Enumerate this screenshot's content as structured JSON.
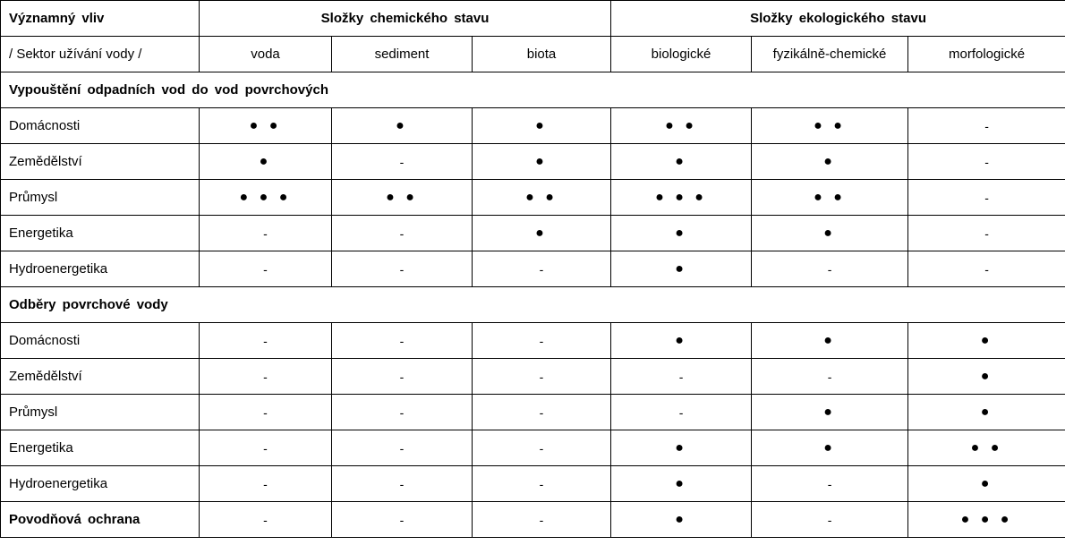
{
  "header": {
    "col0_title": "Významný vliv",
    "col0_sub": "/ Sektor užívání vody /",
    "chem_group": "Složky chemického stavu",
    "eco_group": "Složky ekologického stavu",
    "columns": [
      "voda",
      "sediment",
      "biota",
      "biologické",
      "fyzikálně-chemické",
      "morfologické"
    ]
  },
  "sections": [
    {
      "title": "Vypouštění odpadních vod do vod povrchových",
      "rows": [
        {
          "sector": "Domácnosti",
          "values": [
            "● ●",
            "●",
            "●",
            "● ●",
            "● ●",
            "-"
          ]
        },
        {
          "sector": "Zemědělství",
          "values": [
            "●",
            "-",
            "●",
            "●",
            "●",
            "-"
          ]
        },
        {
          "sector": "Průmysl",
          "values": [
            "● ● ●",
            "● ●",
            "● ●",
            "● ● ●",
            "● ●",
            "-"
          ]
        },
        {
          "sector": "Energetika",
          "values": [
            "-",
            "-",
            "●",
            "●",
            "●",
            "-"
          ]
        },
        {
          "sector": "Hydroenergetika",
          "values": [
            "-",
            "-",
            "-",
            "●",
            "-",
            "-"
          ]
        }
      ]
    },
    {
      "title": "Odběry povrchové vody",
      "rows": [
        {
          "sector": "Domácnosti",
          "values": [
            "-",
            "-",
            "-",
            "●",
            "●",
            "●"
          ]
        },
        {
          "sector": "Zemědělství",
          "values": [
            "-",
            "-",
            "-",
            "-",
            "-",
            "●"
          ]
        },
        {
          "sector": "Průmysl",
          "values": [
            "-",
            "-",
            "-",
            "-",
            "●",
            "●"
          ]
        },
        {
          "sector": "Energetika",
          "values": [
            "-",
            "-",
            "-",
            "●",
            "●",
            "● ●"
          ]
        },
        {
          "sector": "Hydroenergetika",
          "values": [
            "-",
            "-",
            "-",
            "●",
            "-",
            "●"
          ]
        }
      ]
    }
  ],
  "footer_row": {
    "sector": "Povodňová ochrana",
    "values": [
      "-",
      "-",
      "-",
      "●",
      "-",
      "● ● ●"
    ]
  }
}
